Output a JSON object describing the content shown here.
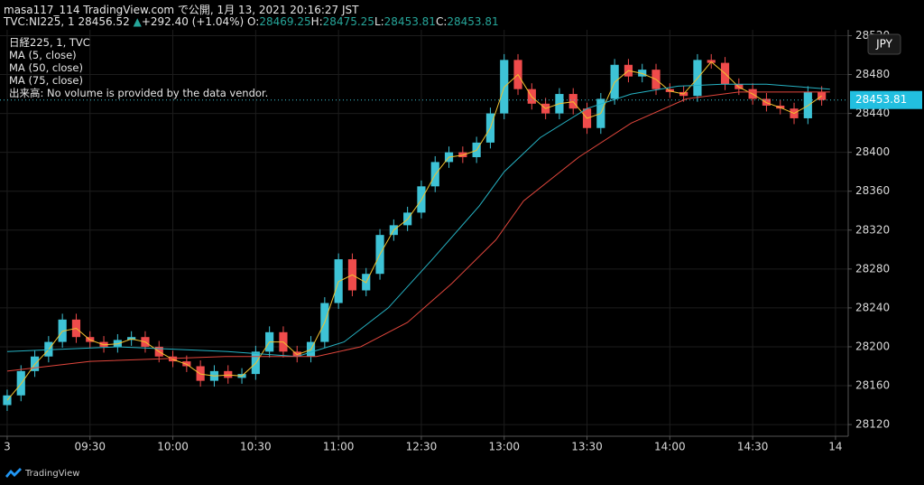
{
  "header": {
    "publisher": "masa117_114 TradingView.com で公開, 1月 13, 2021 20:16:27 JST",
    "symbol": "TVC:NI225, 1",
    "price": "28456.52",
    "arrow": "▲",
    "change": "+292.40 (+1.04%)",
    "ohlc": [
      {
        "label": "O:",
        "value": "28469.25"
      },
      {
        "label": "H:",
        "value": "28475.25"
      },
      {
        "label": "L:",
        "value": "28453.81"
      },
      {
        "label": "C:",
        "value": "28453.81"
      }
    ]
  },
  "footer": {
    "brand": "TradingView"
  },
  "chart_data": {
    "type": "candlestick",
    "title": "日経225, 1, TVC",
    "annotation": "出来高: No volume is provided by the data vendor.",
    "currency": "JPY",
    "last_price": 28453.81,
    "up_color": "#3ec3d6",
    "down_color": "#ef4b4b",
    "grid": true,
    "x": [
      0,
      5,
      10,
      15,
      20,
      25,
      30,
      35,
      40,
      45,
      50,
      55,
      60,
      65,
      70,
      75,
      80,
      85,
      90,
      95,
      100,
      105,
      110,
      115,
      120,
      125,
      130,
      135,
      140,
      145,
      150,
      155,
      160,
      165,
      170,
      175,
      180,
      185,
      190,
      195,
      200,
      205,
      210,
      215,
      220,
      225,
      230,
      235,
      240,
      245,
      250,
      255,
      260,
      265,
      270,
      275,
      280,
      285,
      290,
      295
    ],
    "open": [
      28140,
      28150,
      28175,
      28190,
      28205,
      28228,
      28210,
      28205,
      28200,
      28207,
      28210,
      28200,
      28190,
      28185,
      28180,
      28165,
      28175,
      28168,
      28172,
      28195,
      28215,
      28195,
      28190,
      28205,
      28245,
      28290,
      28258,
      28275,
      28315,
      28325,
      28338,
      28365,
      28390,
      28400,
      28395,
      28410,
      28440,
      28495,
      28465,
      28450,
      28440,
      28460,
      28445,
      28425,
      28455,
      28490,
      28478,
      28485,
      28465,
      28462,
      28458,
      28495,
      28492,
      28470,
      28465,
      28455,
      28448,
      28445,
      28435,
      28462
    ],
    "high": [
      28156,
      28181,
      28196,
      28211,
      28234,
      28234,
      28216,
      28211,
      28213,
      28216,
      28216,
      28206,
      28196,
      28191,
      28186,
      28181,
      28181,
      28178,
      28201,
      28221,
      28221,
      28201,
      28211,
      28251,
      28296,
      28296,
      28281,
      28321,
      28331,
      28344,
      28371,
      28396,
      28406,
      28406,
      28416,
      28446,
      28501,
      28501,
      28471,
      28456,
      28466,
      28466,
      28451,
      28461,
      28496,
      28496,
      28491,
      28491,
      28471,
      28468,
      28501,
      28501,
      28498,
      28476,
      28471,
      28461,
      28454,
      28451,
      28468,
      28468
    ],
    "low": [
      28134,
      28144,
      28169,
      28184,
      28199,
      28204,
      28199,
      28194,
      28194,
      28201,
      28194,
      28184,
      28179,
      28174,
      28159,
      28159,
      28162,
      28162,
      28166,
      28189,
      28189,
      28184,
      28184,
      28199,
      28239,
      28252,
      28252,
      28269,
      28309,
      28319,
      28332,
      28359,
      28384,
      28389,
      28389,
      28404,
      28434,
      28459,
      28444,
      28434,
      28434,
      28439,
      28419,
      28419,
      28449,
      28472,
      28472,
      28459,
      28456,
      28452,
      28452,
      28486,
      28464,
      28459,
      28449,
      28442,
      28439,
      28429,
      28429,
      28448
    ],
    "close": [
      28150,
      28175,
      28190,
      28205,
      28228,
      28210,
      28205,
      28200,
      28207,
      28210,
      28200,
      28190,
      28185,
      28180,
      28165,
      28175,
      28168,
      28172,
      28195,
      28215,
      28195,
      28190,
      28205,
      28245,
      28290,
      28258,
      28275,
      28315,
      28325,
      28338,
      28365,
      28390,
      28400,
      28395,
      28410,
      28440,
      28495,
      28465,
      28450,
      28440,
      28460,
      28445,
      28425,
      28455,
      28490,
      28478,
      28485,
      28465,
      28462,
      28458,
      28495,
      28492,
      28470,
      28465,
      28455,
      28448,
      28445,
      28435,
      28462,
      28453.81
    ],
    "series": [
      {
        "name": "MA (5, close)",
        "color": "#f2c12e",
        "x": [
          0,
          5,
          10,
          15,
          20,
          25,
          30,
          35,
          40,
          45,
          50,
          55,
          60,
          65,
          70,
          75,
          80,
          85,
          90,
          95,
          100,
          105,
          110,
          115,
          120,
          125,
          130,
          135,
          140,
          145,
          150,
          155,
          160,
          165,
          170,
          175,
          180,
          185,
          190,
          195,
          200,
          205,
          210,
          215,
          220,
          225,
          230,
          235,
          240,
          245,
          250,
          255,
          260,
          265,
          270,
          275,
          280,
          285,
          290,
          295
        ],
        "values": [
          28145,
          28162,
          28182,
          28197,
          28216,
          28219,
          28207,
          28202,
          28203,
          28208,
          28205,
          28195,
          28187,
          28182,
          28172,
          28170,
          28171,
          28170,
          28183,
          28205,
          28205,
          28192,
          28197,
          28225,
          28267,
          28274,
          28266,
          28295,
          28320,
          28331,
          28351,
          28377,
          28395,
          28397,
          28402,
          28425,
          28467,
          28480,
          28457,
          28445,
          28450,
          28452,
          28435,
          28440,
          28472,
          28484,
          28481,
          28475,
          28463,
          28460,
          28476,
          28493,
          28481,
          28467,
          28460,
          28451,
          28446,
          28440,
          28448,
          28458
        ]
      },
      {
        "name": "MA (50, close)",
        "color": "#26b3c4",
        "x": [
          0,
          40,
          80,
          105,
          122,
          138,
          154,
          171,
          180,
          193,
          210,
          226,
          243,
          259,
          275,
          298
        ],
        "values": [
          28195,
          28200,
          28195,
          28190,
          28205,
          28240,
          28290,
          28345,
          28380,
          28415,
          28445,
          28460,
          28468,
          28470,
          28470,
          28465
        ]
      },
      {
        "name": "MA (75, close)",
        "color": "#e0463c",
        "x": [
          0,
          30,
          79,
          112,
          128,
          145,
          161,
          177,
          187,
          207,
          226,
          246,
          265,
          298
        ],
        "values": [
          28175,
          28185,
          28190,
          28190,
          28200,
          28225,
          28265,
          28310,
          28350,
          28395,
          28430,
          28455,
          28462,
          28462
        ]
      }
    ],
    "xlim": [
      -2.6,
      304.6
    ],
    "xticks": [
      {
        "value": 0,
        "label": "3"
      },
      {
        "value": 30,
        "label": "09:30"
      },
      {
        "value": 60,
        "label": "10:00"
      },
      {
        "value": 90,
        "label": "10:30"
      },
      {
        "value": 120,
        "label": "11:00"
      },
      {
        "value": 150,
        "label": "12:30"
      },
      {
        "value": 180,
        "label": "13:00"
      },
      {
        "value": 210,
        "label": "13:30"
      },
      {
        "value": 240,
        "label": "14:00"
      },
      {
        "value": 270,
        "label": "14:30"
      },
      {
        "value": 300,
        "label": "14"
      }
    ],
    "ylim": [
      28108,
      28526
    ],
    "yticks": [
      28120,
      28160,
      28200,
      28240,
      28280,
      28320,
      28360,
      28400,
      28440,
      28480,
      28520
    ]
  }
}
